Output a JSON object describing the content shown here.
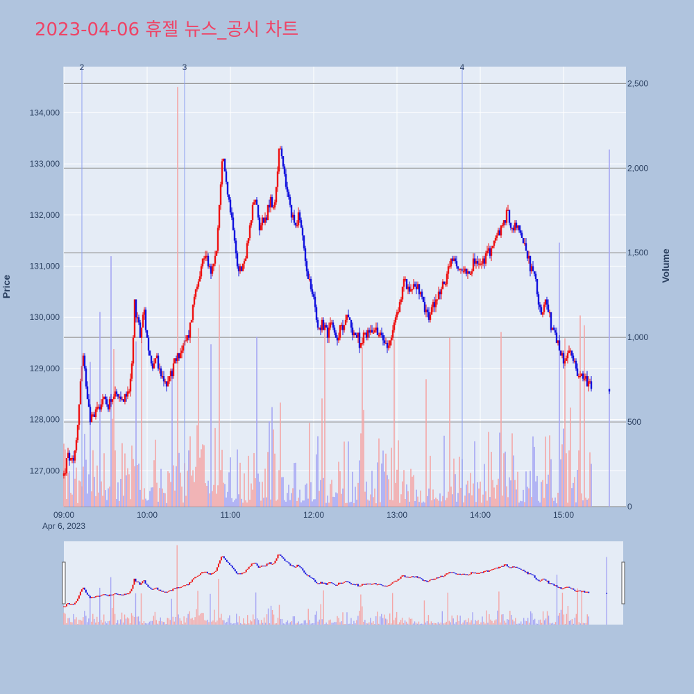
{
  "chart_data": {
    "type": "candlestick",
    "title": "2023-04-06 휴젤 뉴스_공시 차트",
    "ylabel": "Price",
    "y2label": "Volume",
    "ylim": [
      126300,
      134900
    ],
    "y2lim": [
      0,
      2600
    ],
    "xlim_minutes": [
      0,
      405
    ],
    "y_ticks": [
      127000,
      128000,
      129000,
      130000,
      131000,
      132000,
      133000,
      134000
    ],
    "y_tick_labels": [
      "127,000",
      "128,000",
      "129,000",
      "130,000",
      "131,000",
      "132,000",
      "133,000",
      "134,000"
    ],
    "y2_ticks": [
      0,
      500,
      1000,
      1500,
      2000,
      2500
    ],
    "y2_tick_labels": [
      "0",
      "500",
      "1,000",
      "1,500",
      "2,000",
      "2,500"
    ],
    "x_ticks_minutes": [
      0,
      60,
      120,
      180,
      240,
      300,
      360
    ],
    "x_tick_labels": [
      "09:00",
      "10:00",
      "11:00",
      "12:00",
      "13:00",
      "14:00",
      "15:00"
    ],
    "x_date_label": "Apr 6, 2023",
    "up_color": "#ee1111",
    "down_color": "#1111dd",
    "volume_up_color": "#f4a6a6",
    "volume_down_color": "#a6a6f4",
    "price_path_anchors": [
      [
        0,
        126900
      ],
      [
        2,
        127300
      ],
      [
        5,
        127100
      ],
      [
        7,
        127800
      ],
      [
        9,
        128900
      ],
      [
        10,
        129200
      ],
      [
        12,
        128600
      ],
      [
        14,
        128000
      ],
      [
        17,
        128200
      ],
      [
        20,
        128400
      ],
      [
        23,
        128300
      ],
      [
        26,
        128500
      ],
      [
        30,
        128300
      ],
      [
        33,
        128600
      ],
      [
        35,
        128700
      ],
      [
        36,
        129200
      ],
      [
        37,
        130400
      ],
      [
        38,
        130000
      ],
      [
        40,
        129700
      ],
      [
        42,
        130100
      ],
      [
        44,
        129500
      ],
      [
        46,
        129000
      ],
      [
        48,
        129300
      ],
      [
        50,
        128900
      ],
      [
        53,
        128700
      ],
      [
        56,
        128900
      ],
      [
        59,
        129200
      ],
      [
        62,
        129400
      ],
      [
        65,
        129600
      ],
      [
        67,
        130100
      ],
      [
        69,
        130600
      ],
      [
        72,
        131000
      ],
      [
        74,
        131300
      ],
      [
        76,
        131000
      ],
      [
        78,
        130900
      ],
      [
        80,
        131400
      ],
      [
        82,
        132500
      ],
      [
        83,
        133100
      ],
      [
        85,
        132700
      ],
      [
        87,
        132100
      ],
      [
        89,
        131700
      ],
      [
        91,
        131000
      ],
      [
        93,
        130900
      ],
      [
        96,
        131400
      ],
      [
        98,
        131900
      ],
      [
        100,
        132400
      ],
      [
        102,
        131800
      ],
      [
        104,
        131900
      ],
      [
        106,
        132000
      ],
      [
        108,
        132300
      ],
      [
        110,
        132100
      ],
      [
        112,
        133000
      ],
      [
        113,
        133400
      ],
      [
        115,
        132800
      ],
      [
        117,
        132400
      ],
      [
        119,
        132000
      ],
      [
        121,
        131800
      ],
      [
        123,
        132000
      ],
      [
        125,
        131500
      ],
      [
        127,
        131000
      ],
      [
        129,
        130600
      ],
      [
        131,
        130300
      ],
      [
        133,
        129800
      ],
      [
        135,
        129900
      ],
      [
        138,
        129700
      ],
      [
        140,
        130000
      ],
      [
        142,
        129600
      ],
      [
        145,
        129800
      ],
      [
        148,
        130000
      ],
      [
        152,
        129700
      ],
      [
        155,
        129500
      ],
      [
        158,
        129700
      ],
      [
        162,
        129800
      ],
      [
        166,
        129600
      ],
      [
        170,
        129500
      ],
      [
        173,
        129900
      ],
      [
        176,
        130300
      ],
      [
        178,
        130800
      ],
      [
        180,
        130500
      ],
      [
        183,
        130700
      ],
      [
        186,
        130500
      ],
      [
        188,
        130200
      ],
      [
        191,
        130000
      ],
      [
        194,
        130300
      ],
      [
        197,
        130500
      ],
      [
        200,
        130800
      ],
      [
        203,
        131100
      ],
      [
        206,
        130900
      ],
      [
        209,
        131000
      ],
      [
        212,
        130900
      ],
      [
        215,
        131100
      ],
      [
        218,
        131000
      ],
      [
        221,
        131200
      ],
      [
        224,
        131400
      ],
      [
        227,
        131600
      ],
      [
        230,
        131800
      ],
      [
        232,
        132100
      ],
      [
        234,
        131700
      ],
      [
        236,
        131800
      ],
      [
        238,
        131700
      ],
      [
        240,
        131600
      ],
      [
        242,
        131300
      ],
      [
        244,
        131000
      ],
      [
        246,
        130800
      ],
      [
        248,
        130400
      ],
      [
        250,
        130000
      ],
      [
        252,
        130300
      ],
      [
        254,
        130000
      ],
      [
        256,
        129700
      ],
      [
        258,
        129500
      ],
      [
        260,
        129300
      ],
      [
        262,
        129100
      ],
      [
        264,
        129300
      ],
      [
        266,
        129200
      ],
      [
        268,
        129000
      ],
      [
        270,
        128800
      ],
      [
        272,
        128900
      ],
      [
        274,
        128700
      ],
      [
        276,
        128600
      ],
      [
        278,
        128400
      ],
      [
        280,
        128500
      ],
      [
        282,
        128300
      ],
      [
        284,
        128400
      ],
      [
        286,
        128200
      ],
      [
        288,
        128100
      ],
      [
        290,
        128300
      ],
      [
        292,
        128200
      ],
      [
        294,
        128000
      ]
    ],
    "vertical_markers": [
      {
        "label": "2",
        "minute": 13
      },
      {
        "label": "3",
        "minute": 87
      },
      {
        "label": "4",
        "minute": 287
      }
    ]
  }
}
